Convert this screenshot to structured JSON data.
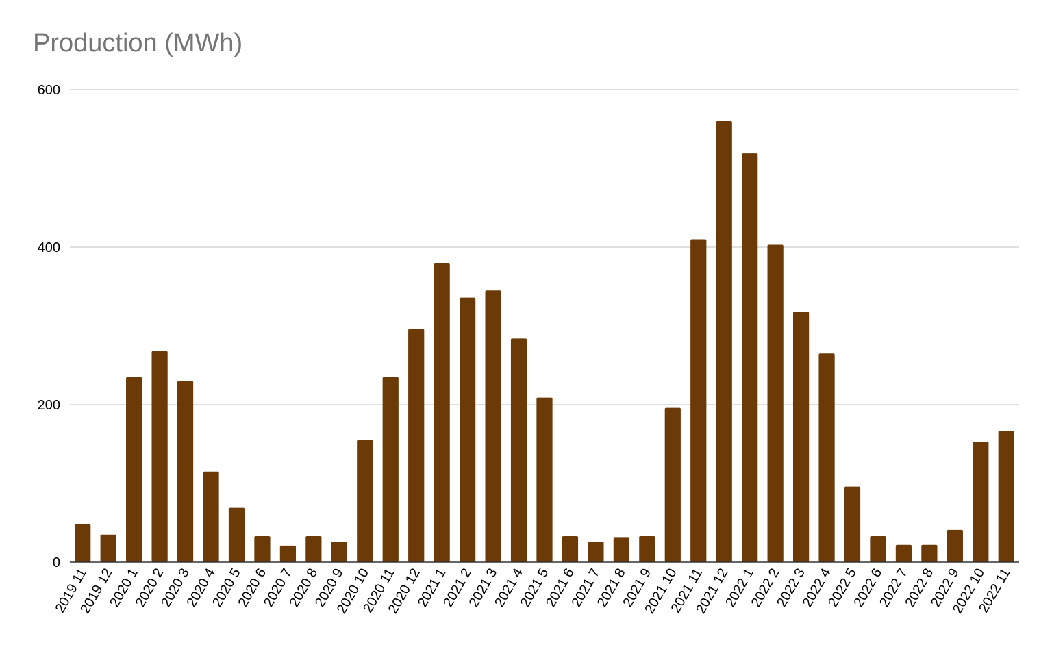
{
  "chart_data": {
    "type": "bar",
    "title": "Production (MWh)",
    "xlabel": "",
    "ylabel": "",
    "ylim": [
      0,
      600
    ],
    "yticks": [
      0,
      200,
      400,
      600
    ],
    "grid": true,
    "color": "#6b3a07",
    "categories": [
      "2019 11",
      "2019 12",
      "2020 1",
      "2020 2",
      "2020 3",
      "2020 4",
      "2020 5",
      "2020 6",
      "2020 7",
      "2020 8",
      "2020 9",
      "2020 10",
      "2020 11",
      "2020 12",
      "2021 1",
      "2021 2",
      "2021 3",
      "2021 4",
      "2021 5",
      "2021 6",
      "2021 7",
      "2021 8",
      "2021 9",
      "2021 10",
      "2021 11",
      "2021 12",
      "2022 1",
      "2022 2",
      "2022 3",
      "2022 4",
      "2022 5",
      "2022 6",
      "2022 7",
      "2022 8",
      "2022 9",
      "2022 10",
      "2022 11"
    ],
    "values": [
      48,
      35,
      235,
      268,
      230,
      115,
      69,
      33,
      21,
      33,
      26,
      155,
      235,
      296,
      380,
      336,
      345,
      284,
      209,
      33,
      26,
      31,
      33,
      196,
      410,
      560,
      519,
      403,
      318,
      265,
      96,
      33,
      22,
      22,
      41,
      153,
      167
    ]
  }
}
